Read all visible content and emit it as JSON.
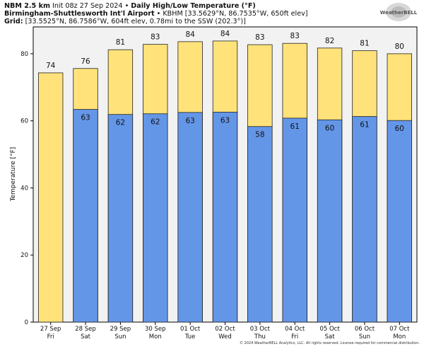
{
  "header": {
    "model": "NBM 2.5 km",
    "init": "Init 08z 27 Sep 2024",
    "bullet": "•",
    "product": "Daily High/Low Temperature (°F)",
    "station_name": "Birmingham-Shuttlesworth Int'l Airport",
    "station_info": "KBHM [33.5629°N, 86.7535°W, 650ft elev]",
    "grid_label": "Grid:",
    "grid_info": "[33.5525°N, 86.7586°W, 604ft elev, 0.78mi to the SSW (202.3°)]"
  },
  "logo_text": "WeatherBELL",
  "footer": "© 2024 WeatherBELL Analytics, LLC. All rights reserved. License required for commercial distribution.",
  "colors": {
    "high_fill": "#ffe27a",
    "low_fill": "#6496e8",
    "plot_bg": "#f2f2f2",
    "bar_edge": "#222222"
  },
  "chart_data": {
    "type": "bar",
    "ylabel": "Temperature [°F]",
    "ylim": [
      0,
      88
    ],
    "yticks": [
      0,
      20,
      40,
      60,
      80
    ],
    "grid": false,
    "categories": [
      [
        "27 Sep",
        "Fri"
      ],
      [
        "28 Sep",
        "Sat"
      ],
      [
        "29 Sep",
        "Sun"
      ],
      [
        "30 Sep",
        "Mon"
      ],
      [
        "01 Oct",
        "Tue"
      ],
      [
        "02 Oct",
        "Wed"
      ],
      [
        "03 Oct",
        "Thu"
      ],
      [
        "04 Oct",
        "Fri"
      ],
      [
        "05 Oct",
        "Sat"
      ],
      [
        "06 Oct",
        "Sun"
      ],
      [
        "07 Oct",
        "Mon"
      ]
    ],
    "series": [
      {
        "values": [
          74.3,
          75.6,
          81.2,
          82.8,
          83.6,
          83.8,
          82.7,
          83.1,
          81.7,
          80.9,
          80.0
        ],
        "labels": [
          "74",
          "76",
          "81",
          "83",
          "84",
          "84",
          "83",
          "83",
          "82",
          "81",
          "80"
        ]
      },
      {
        "values": [
          null,
          63.4,
          61.9,
          62.1,
          62.5,
          62.6,
          58.3,
          60.8,
          60.3,
          61.3,
          60.1
        ],
        "labels": [
          "",
          "63",
          "62",
          "62",
          "63",
          "63",
          "58",
          "61",
          "60",
          "61",
          "60"
        ]
      }
    ]
  }
}
